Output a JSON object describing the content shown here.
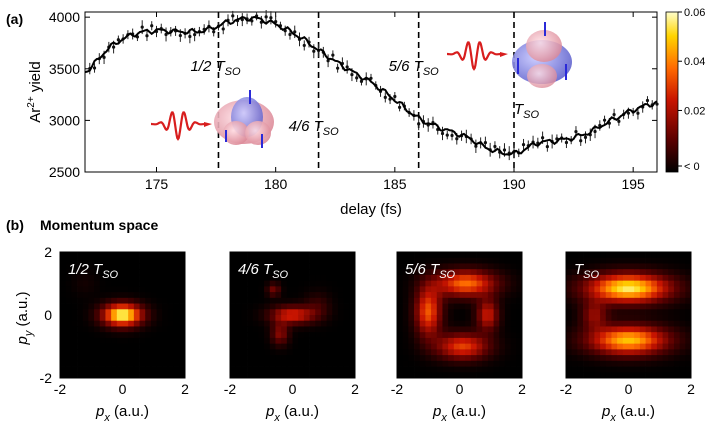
{
  "panel_a": {
    "label": "(a)",
    "chart_data": {
      "type": "scatter",
      "title": "",
      "xlabel": "delay (fs)",
      "ylabel": "Ar2+ yield",
      "ylabel_base": "Ar",
      "ylabel_sup": "2+",
      "ylabel_rest": " yield",
      "xlim": [
        172,
        196
      ],
      "ylim": [
        2500,
        4050
      ],
      "xticks": [
        175,
        180,
        185,
        190,
        195
      ],
      "yticks": [
        2500,
        3000,
        3500,
        4000
      ],
      "grid": false,
      "fit_curve": {
        "x": [
          172,
          173,
          174,
          175,
          176,
          177,
          178,
          179,
          180,
          181,
          182,
          183,
          184,
          185,
          186,
          187,
          188,
          189,
          190,
          191,
          192,
          193,
          194,
          195,
          196
        ],
        "y": [
          3470,
          3700,
          3830,
          3870,
          3860,
          3870,
          3950,
          3990,
          3930,
          3810,
          3650,
          3500,
          3370,
          3200,
          3020,
          2920,
          2840,
          2720,
          2680,
          2780,
          2810,
          2870,
          2990,
          3100,
          3170
        ]
      },
      "markers": [
        {
          "x": 177.6,
          "label": "1/2 T",
          "sub": "SO"
        },
        {
          "x": 181.8,
          "label": "4/6 T",
          "sub": "SO"
        },
        {
          "x": 186.0,
          "label": "5/6 T",
          "sub": "SO"
        },
        {
          "x": 190.0,
          "label": "T",
          "sub": "SO"
        }
      ]
    }
  },
  "colorbar": {
    "ticks": [
      "0.06",
      "0.04",
      "0.02",
      "< 0"
    ],
    "tick_values": [
      0.06,
      0.04,
      0.02,
      0.0
    ],
    "range": [
      -0.005,
      0.06
    ]
  },
  "panel_b": {
    "label": "(b)",
    "title": "Momentum space",
    "ylabel_main": "p",
    "ylabel_sub": "y",
    "ylabel_unit": " (a.u.)",
    "xlabel_main": "p",
    "xlabel_sub": "x",
    "xlabel_unit": " (a.u.)",
    "xtick_labels": [
      "-2",
      "0",
      "2"
    ],
    "ytick_labels": [
      "2",
      "0",
      "-2"
    ],
    "panels": [
      {
        "label": "1/2 T",
        "sub": "SO"
      },
      {
        "label": "4/6 T",
        "sub": "SO"
      },
      {
        "label": "5/6 T",
        "sub": "SO"
      },
      {
        "label": "T",
        "sub": "SO"
      }
    ]
  },
  "colors": {
    "fit": "#000000",
    "points": "#111111",
    "markers": "#000000",
    "laser": "#d81e1e",
    "orbital_blue": "#6b6fd8",
    "orbital_pink": "#e69aa8",
    "arrow": "#2a2ad8"
  }
}
